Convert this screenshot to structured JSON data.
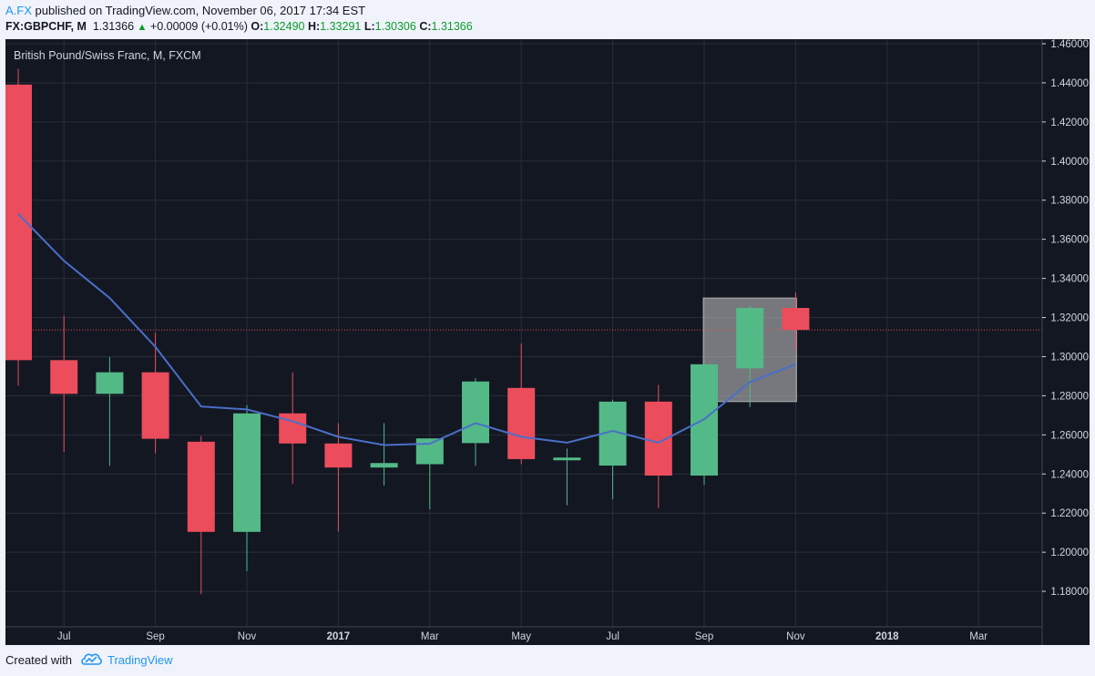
{
  "header": {
    "author": "A.FX",
    "published_text": "published on TradingView.com, November 06, 2017 17:34 EST",
    "symbol": "FX:GBPCHF, M",
    "last_price": "1.31366",
    "change_arrow": "▲",
    "change": "+0.00009 (+0.01%)",
    "open_label": "O:",
    "open_value": "1.32490",
    "high_label": "H:",
    "high_value": "1.33291",
    "low_label": "L:",
    "low_value": "1.30306",
    "close_label": "C:",
    "close_value": "1.31366"
  },
  "footer": {
    "created_with": "Created with",
    "brand": "TradingView"
  },
  "colors": {
    "background": "#131722",
    "grid": "#2a2e39",
    "up": "#53b987",
    "down": "#eb4d5c",
    "ma_line": "#4a6fc9",
    "price_line": "#eb4d5c",
    "highlight": "#c8c8c8",
    "axis_text": "#d1d4dc"
  },
  "chart_data": {
    "type": "candlestick",
    "title": "British Pound/Swiss Franc, M, FXCM",
    "ylim": [
      1.16,
      1.46
    ],
    "y_ticks": [
      "1.18000",
      "1.20000",
      "1.22000",
      "1.24000",
      "1.26000",
      "1.28000",
      "1.30000",
      "1.32000",
      "1.34000",
      "1.36000",
      "1.38000",
      "1.40000",
      "1.42000",
      "1.44000",
      "1.46000"
    ],
    "x_ticks": [
      {
        "label": "Jul",
        "month": "2016-07",
        "bold": false
      },
      {
        "label": "Sep",
        "month": "2016-09",
        "bold": false
      },
      {
        "label": "Nov",
        "month": "2016-11",
        "bold": false
      },
      {
        "label": "2017",
        "month": "2017-01",
        "bold": true
      },
      {
        "label": "Mar",
        "month": "2017-03",
        "bold": false
      },
      {
        "label": "May",
        "month": "2017-05",
        "bold": false
      },
      {
        "label": "Jul",
        "month": "2017-07",
        "bold": false
      },
      {
        "label": "Sep",
        "month": "2017-09",
        "bold": false
      },
      {
        "label": "Nov",
        "month": "2017-11",
        "bold": false
      },
      {
        "label": "2018",
        "month": "2018-01",
        "bold": true
      },
      {
        "label": "Mar",
        "month": "2018-03",
        "bold": false
      }
    ],
    "candles": [
      {
        "month": "2016-06",
        "open": 1.4391,
        "high": 1.4472,
        "low": 1.2852,
        "close": 1.2982
      },
      {
        "month": "2016-07",
        "open": 1.2982,
        "high": 1.321,
        "low": 1.2513,
        "close": 1.281
      },
      {
        "month": "2016-08",
        "open": 1.281,
        "high": 1.2998,
        "low": 1.2442,
        "close": 1.292
      },
      {
        "month": "2016-09",
        "open": 1.292,
        "high": 1.3123,
        "low": 1.2506,
        "close": 1.258
      },
      {
        "month": "2016-10",
        "open": 1.2565,
        "high": 1.2594,
        "low": 1.1785,
        "close": 1.2104
      },
      {
        "month": "2016-11",
        "open": 1.2104,
        "high": 1.2752,
        "low": 1.1904,
        "close": 1.271
      },
      {
        "month": "2016-12",
        "open": 1.271,
        "high": 1.292,
        "low": 1.235,
        "close": 1.2556
      },
      {
        "month": "2017-01",
        "open": 1.2556,
        "high": 1.266,
        "low": 1.2106,
        "close": 1.2433
      },
      {
        "month": "2017-02",
        "open": 1.2433,
        "high": 1.266,
        "low": 1.2341,
        "close": 1.2456
      },
      {
        "month": "2017-03",
        "open": 1.245,
        "high": 1.258,
        "low": 1.222,
        "close": 1.2582
      },
      {
        "month": "2017-04",
        "open": 1.2558,
        "high": 1.289,
        "low": 1.2442,
        "close": 1.2873
      },
      {
        "month": "2017-05",
        "open": 1.284,
        "high": 1.3067,
        "low": 1.245,
        "close": 1.2476
      },
      {
        "month": "2017-06",
        "open": 1.2476,
        "high": 1.253,
        "low": 1.224,
        "close": 1.2484
      },
      {
        "month": "2017-07",
        "open": 1.2443,
        "high": 1.278,
        "low": 1.2271,
        "close": 1.277
      },
      {
        "month": "2017-08",
        "open": 1.277,
        "high": 1.2856,
        "low": 1.2225,
        "close": 1.2392
      },
      {
        "month": "2017-09",
        "open": 1.2392,
        "high": 1.2966,
        "low": 1.2345,
        "close": 1.2961
      },
      {
        "month": "2017-10",
        "open": 1.294,
        "high": 1.326,
        "low": 1.2742,
        "close": 1.3249
      },
      {
        "month": "2017-11",
        "open": 1.3249,
        "high": 1.3329,
        "low": 1.3031,
        "close": 1.3137
      }
    ],
    "moving_average": [
      {
        "month": "2016-06",
        "value": 1.373
      },
      {
        "month": "2016-07",
        "value": 1.349
      },
      {
        "month": "2016-08",
        "value": 1.33
      },
      {
        "month": "2016-09",
        "value": 1.305
      },
      {
        "month": "2016-10",
        "value": 1.2745
      },
      {
        "month": "2016-11",
        "value": 1.273
      },
      {
        "month": "2016-12",
        "value": 1.267
      },
      {
        "month": "2017-01",
        "value": 1.259
      },
      {
        "month": "2017-02",
        "value": 1.2548
      },
      {
        "month": "2017-03",
        "value": 1.2555
      },
      {
        "month": "2017-04",
        "value": 1.266
      },
      {
        "month": "2017-05",
        "value": 1.259
      },
      {
        "month": "2017-06",
        "value": 1.256
      },
      {
        "month": "2017-07",
        "value": 1.262
      },
      {
        "month": "2017-08",
        "value": 1.256
      },
      {
        "month": "2017-09",
        "value": 1.268
      },
      {
        "month": "2017-10",
        "value": 1.287
      },
      {
        "month": "2017-11",
        "value": 1.2961
      }
    ],
    "current_price": 1.31366,
    "highlight_box": {
      "from_month": "2017-09",
      "to_month": "2017-11",
      "top": 1.33,
      "bottom": 1.277
    }
  }
}
